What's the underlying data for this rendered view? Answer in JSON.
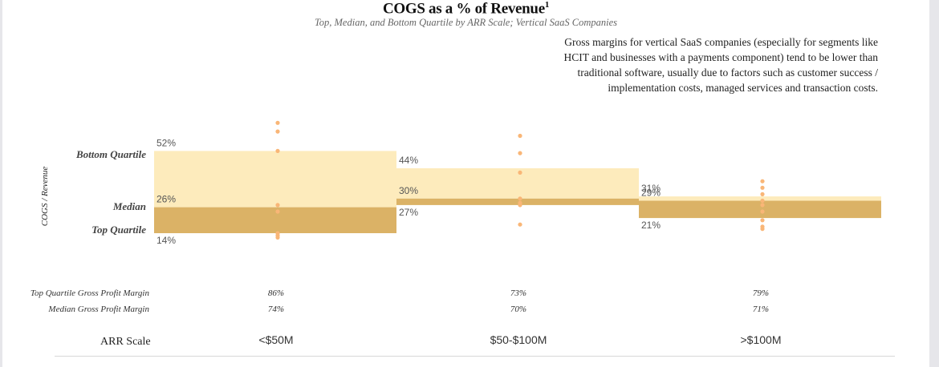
{
  "header": {
    "title": "COGS as a % of Revenue",
    "title_superscript": "1",
    "subtitle": "Top, Median, and Bottom Quartile by ARR Scale; Vertical SaaS Companies"
  },
  "note": "Gross margins for vertical SaaS companies (especially for segments like HCIT and businesses with a payments component) tend to be lower than traditional software, usually due to factors such as customer success / implementation costs, managed services and transaction costs.",
  "legend_labels": {
    "bottom_quartile": "Bottom Quartile",
    "median": "Median",
    "top_quartile": "Top Quartile"
  },
  "colors": {
    "upper_band": "#fdebbc",
    "lower_band": "#dbb266",
    "dots": "#f9b677"
  },
  "chart_data": {
    "type": "bar",
    "ylabel": "COGS / Revenue",
    "categories": [
      "<$50M",
      "$50-$100M",
      ">$100M"
    ],
    "series": [
      {
        "name": "Bottom Quartile",
        "values": [
          52,
          44,
          31
        ]
      },
      {
        "name": "Median",
        "values": [
          26,
          30,
          29
        ]
      },
      {
        "name": "Top Quartile",
        "values": [
          14,
          27,
          21
        ]
      }
    ],
    "data_labels": [
      {
        "bottom": "52%",
        "median": "26%",
        "top": "14%"
      },
      {
        "bottom": "44%",
        "median": "30%",
        "top": "27%"
      },
      {
        "bottom": "31%",
        "median": "29%",
        "top": "21%"
      }
    ],
    "points": [
      [
        65,
        61,
        52,
        27,
        24,
        14,
        13,
        12
      ],
      [
        59,
        51,
        42,
        30,
        28,
        27,
        18
      ],
      [
        38,
        35,
        32,
        29,
        27,
        24,
        20,
        17,
        16
      ]
    ],
    "ylim": [
      0,
      70
    ],
    "grid": false
  },
  "table": {
    "rows": [
      {
        "label": "Top Quartile Gross Profit Margin",
        "values": [
          "86%",
          "73%",
          "79%"
        ]
      },
      {
        "label": "Median Gross Profit Margin",
        "values": [
          "74%",
          "70%",
          "71%"
        ]
      }
    ]
  },
  "arr_scale": {
    "label": "ARR Scale",
    "categories": [
      "<$50M",
      "$50-$100M",
      ">$100M"
    ]
  }
}
